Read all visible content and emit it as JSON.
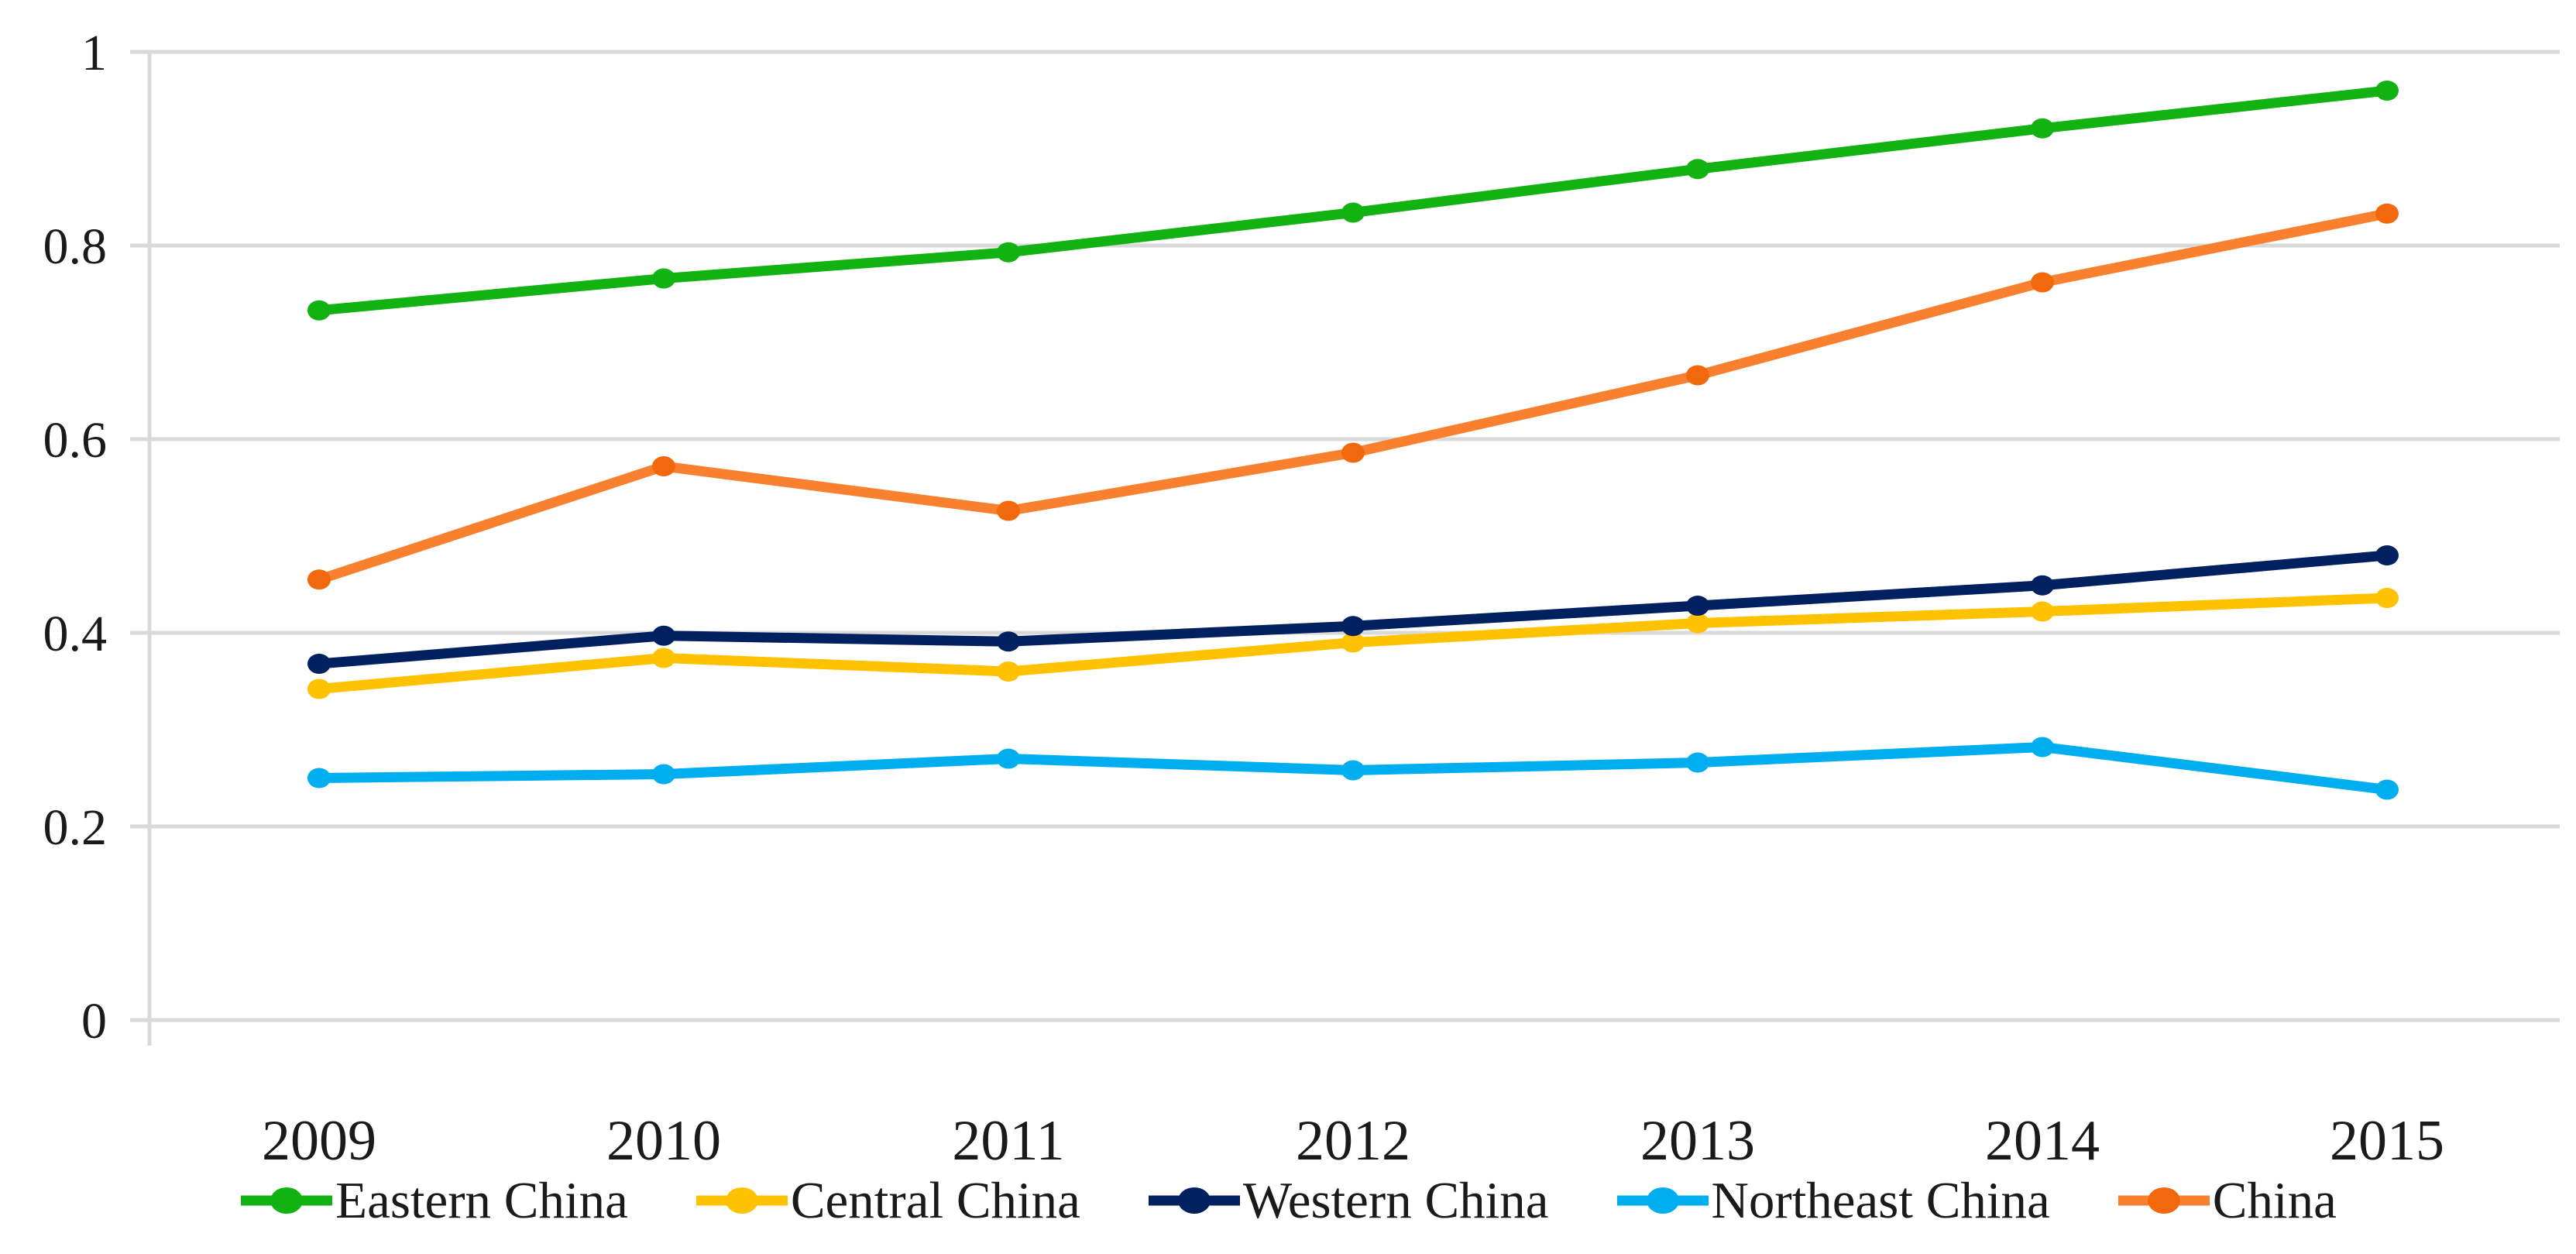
{
  "figure": {
    "background": "#ffffff",
    "text_color": "#1a1a1a",
    "grid_color": "#d9d9d9"
  },
  "chart_data": {
    "type": "line",
    "title": "",
    "xlabel": "",
    "ylabel": "",
    "x": [
      "2009",
      "2010",
      "2011",
      "2012",
      "2013",
      "2014",
      "2015"
    ],
    "ylim": [
      0,
      1
    ],
    "yticks": [
      0,
      0.2,
      0.4,
      0.6,
      0.8,
      1
    ],
    "ytick_labels": [
      "0",
      "0.2",
      "0.4",
      "0.6",
      "0.8",
      "1"
    ],
    "grid": "horizontal",
    "legend_position": "bottom",
    "series": [
      {
        "name": "Eastern China",
        "color": "#12b212",
        "marker": "#12b212",
        "values": [
          0.733,
          0.766,
          0.793,
          0.834,
          0.879,
          0.921,
          0.96
        ]
      },
      {
        "name": "Central China",
        "color": "#ffc200",
        "marker": "#ffc200",
        "values": [
          0.342,
          0.374,
          0.36,
          0.39,
          0.41,
          0.422,
          0.436
        ]
      },
      {
        "name": "Western China",
        "color": "#012060",
        "marker": "#012060",
        "values": [
          0.368,
          0.397,
          0.391,
          0.407,
          0.428,
          0.449,
          0.48
        ]
      },
      {
        "name": "Northeast China",
        "color": "#00aeef",
        "marker": "#00aeef",
        "values": [
          0.25,
          0.254,
          0.27,
          0.258,
          0.266,
          0.282,
          0.238
        ]
      },
      {
        "name": "China",
        "color": "#f8802e",
        "marker": "#f2690d",
        "values": [
          0.455,
          0.572,
          0.526,
          0.586,
          0.666,
          0.762,
          0.833
        ]
      }
    ]
  }
}
